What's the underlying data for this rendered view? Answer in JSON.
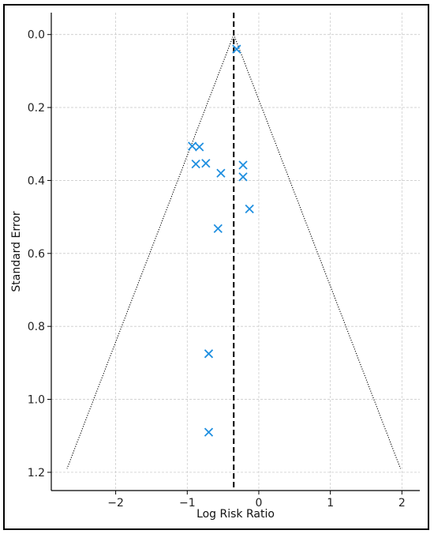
{
  "chart_data": {
    "type": "scatter",
    "title": "",
    "xlabel": "Log Risk Ratio",
    "ylabel": "Standard Error",
    "xlim": [
      -2.9,
      2.25
    ],
    "ylim": [
      1.25,
      -0.06
    ],
    "y_inverted": true,
    "grid": true,
    "legend": "none",
    "x_ticks": [
      {
        "value": -2,
        "label": "−2"
      },
      {
        "value": -1,
        "label": "−1"
      },
      {
        "value": 0,
        "label": "0"
      },
      {
        "value": 1,
        "label": "1"
      },
      {
        "value": 2,
        "label": "2"
      }
    ],
    "y_ticks": [
      {
        "value": 0.0,
        "label": "0.0"
      },
      {
        "value": 0.2,
        "label": "0.2"
      },
      {
        "value": 0.4,
        "label": "0.4"
      },
      {
        "value": 0.6,
        "label": "0.6"
      },
      {
        "value": 0.8,
        "label": "0.8"
      },
      {
        "value": 1.0,
        "label": "1.0"
      },
      {
        "value": 1.2,
        "label": "1.2"
      }
    ],
    "pooled_estimate": -0.35,
    "funnel": {
      "apex": {
        "x": -0.35,
        "y": 0.0
      },
      "left_end": {
        "x": -2.68,
        "y": 1.19
      },
      "right_end": {
        "x": 1.98,
        "y": 1.19
      }
    },
    "series": [
      {
        "marker": "x",
        "color": "#1f8fe0",
        "points": [
          {
            "x": -0.31,
            "y": 0.04
          },
          {
            "x": -0.93,
            "y": 0.306
          },
          {
            "x": -0.83,
            "y": 0.308
          },
          {
            "x": -0.88,
            "y": 0.355
          },
          {
            "x": -0.74,
            "y": 0.353
          },
          {
            "x": -0.53,
            "y": 0.38
          },
          {
            "x": -0.22,
            "y": 0.358
          },
          {
            "x": -0.22,
            "y": 0.39
          },
          {
            "x": -0.13,
            "y": 0.478
          },
          {
            "x": -0.57,
            "y": 0.532
          },
          {
            "x": -0.7,
            "y": 0.875
          },
          {
            "x": -0.7,
            "y": 1.09
          }
        ]
      }
    ]
  },
  "colors": {
    "marker": "#1f8fe0",
    "grid": "#cccccc",
    "axis": "#000000",
    "funnel": "#000000"
  }
}
